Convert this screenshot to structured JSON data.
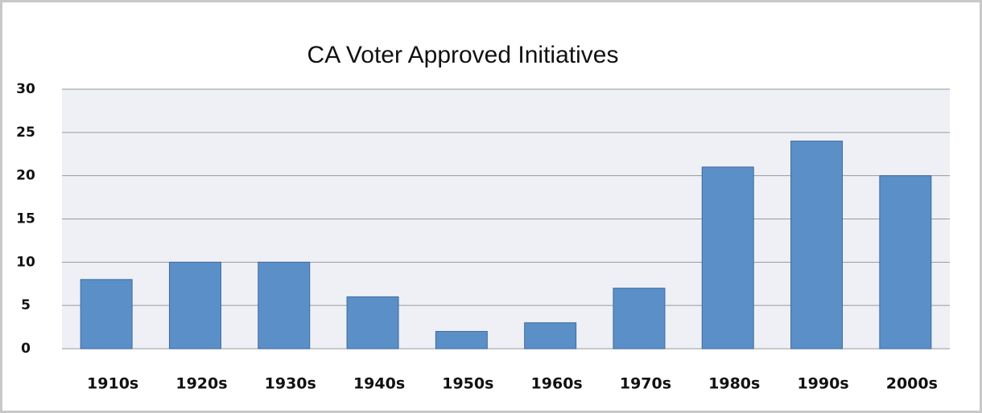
{
  "chart_data": {
    "type": "bar",
    "title": "CA Voter Approved Initiatives",
    "categories": [
      "1910s",
      "1920s",
      "1930s",
      "1940s",
      "1950s",
      "1960s",
      "1970s",
      "1980s",
      "1990s",
      "2000s"
    ],
    "values": [
      8,
      10,
      10,
      6,
      2,
      3,
      7,
      21,
      24,
      20
    ],
    "color": "#5b8fc8",
    "ylim": [
      0,
      30
    ],
    "yticks": [
      0,
      5,
      10,
      15,
      20,
      25,
      30
    ],
    "grid": true
  }
}
